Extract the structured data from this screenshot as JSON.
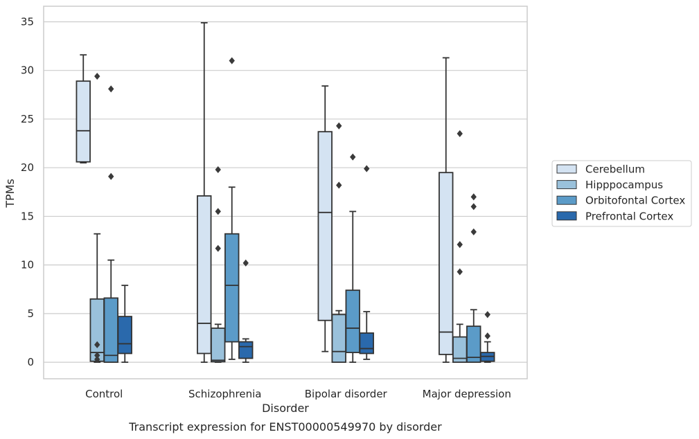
{
  "chart_data": {
    "type": "box",
    "title": "",
    "caption": "Transcript expression for ENST00000549970 by disorder",
    "xlabel": "Disorder",
    "ylabel": "TPMs",
    "ylim": [
      -1.7,
      36.6
    ],
    "yticks": [
      "0",
      "5",
      "10",
      "15",
      "20",
      "25",
      "30",
      "35"
    ],
    "grid": "horizontal",
    "legend_position": "right",
    "categories": [
      "Control",
      "Schizophrenia",
      "Bipolar disorder",
      "Major depression"
    ],
    "series": [
      {
        "name": "Cerebellum",
        "color": "#d4e3f2",
        "boxes": [
          {
            "whislo": 20.5,
            "q1": 20.6,
            "med": 23.8,
            "q3": 28.9,
            "whishi": 31.6,
            "fliers": []
          },
          {
            "whislo": 0.0,
            "q1": 0.9,
            "med": 4.0,
            "q3": 17.1,
            "whishi": 34.9,
            "fliers": []
          },
          {
            "whislo": 1.1,
            "q1": 4.3,
            "med": 15.4,
            "q3": 23.7,
            "whishi": 28.4,
            "fliers": []
          },
          {
            "whislo": 0.0,
            "q1": 0.8,
            "med": 3.1,
            "q3": 19.5,
            "whishi": 31.3,
            "fliers": []
          }
        ]
      },
      {
        "name": "Hipppocampus",
        "color": "#9ac1db",
        "boxes": [
          {
            "whislo": 0.0,
            "q1": 0.1,
            "med": 1.0,
            "q3": 6.5,
            "whishi": 13.2,
            "fliers": [
              0.3,
              0.7,
              1.8,
              29.4
            ]
          },
          {
            "whislo": 0.0,
            "q1": 0.05,
            "med": 0.2,
            "q3": 3.5,
            "whishi": 3.9,
            "fliers": [
              11.7,
              15.5,
              19.8
            ]
          },
          {
            "whislo": 0.0,
            "q1": 0.0,
            "med": 1.1,
            "q3": 4.9,
            "whishi": 5.3,
            "fliers": [
              18.2,
              24.3
            ]
          },
          {
            "whislo": 0.0,
            "q1": 0.0,
            "med": 0.4,
            "q3": 2.6,
            "whishi": 3.9,
            "fliers": [
              9.3,
              12.1,
              23.5
            ]
          }
        ]
      },
      {
        "name": "Orbitofontal Cortex",
        "color": "#5b9bc8",
        "boxes": [
          {
            "whislo": 0.0,
            "q1": 0.0,
            "med": 0.7,
            "q3": 6.6,
            "whishi": 10.5,
            "fliers": [
              19.1,
              28.1
            ]
          },
          {
            "whislo": 0.3,
            "q1": 2.1,
            "med": 7.9,
            "q3": 13.2,
            "whishi": 18.0,
            "fliers": [
              31.0
            ]
          },
          {
            "whislo": 0.0,
            "q1": 1.0,
            "med": 3.5,
            "q3": 7.4,
            "whishi": 15.5,
            "fliers": [
              21.1
            ]
          },
          {
            "whislo": 0.0,
            "q1": 0.0,
            "med": 0.5,
            "q3": 3.7,
            "whishi": 5.4,
            "fliers": [
              13.4,
              16.0,
              17.0
            ]
          }
        ]
      },
      {
        "name": "Prefrontal Cortex",
        "color": "#2a69ac",
        "boxes": [
          {
            "whislo": 0.0,
            "q1": 0.9,
            "med": 1.9,
            "q3": 4.7,
            "whishi": 7.9,
            "fliers": []
          },
          {
            "whislo": 0.0,
            "q1": 0.4,
            "med": 1.6,
            "q3": 2.1,
            "whishi": 2.4,
            "fliers": [
              10.2
            ]
          },
          {
            "whislo": 0.3,
            "q1": 0.9,
            "med": 1.4,
            "q3": 3.0,
            "whishi": 5.2,
            "fliers": [
              19.9
            ]
          },
          {
            "whislo": 0.0,
            "q1": 0.1,
            "med": 0.6,
            "q3": 1.0,
            "whishi": 2.1,
            "fliers": [
              2.7,
              4.9
            ]
          }
        ]
      }
    ]
  }
}
